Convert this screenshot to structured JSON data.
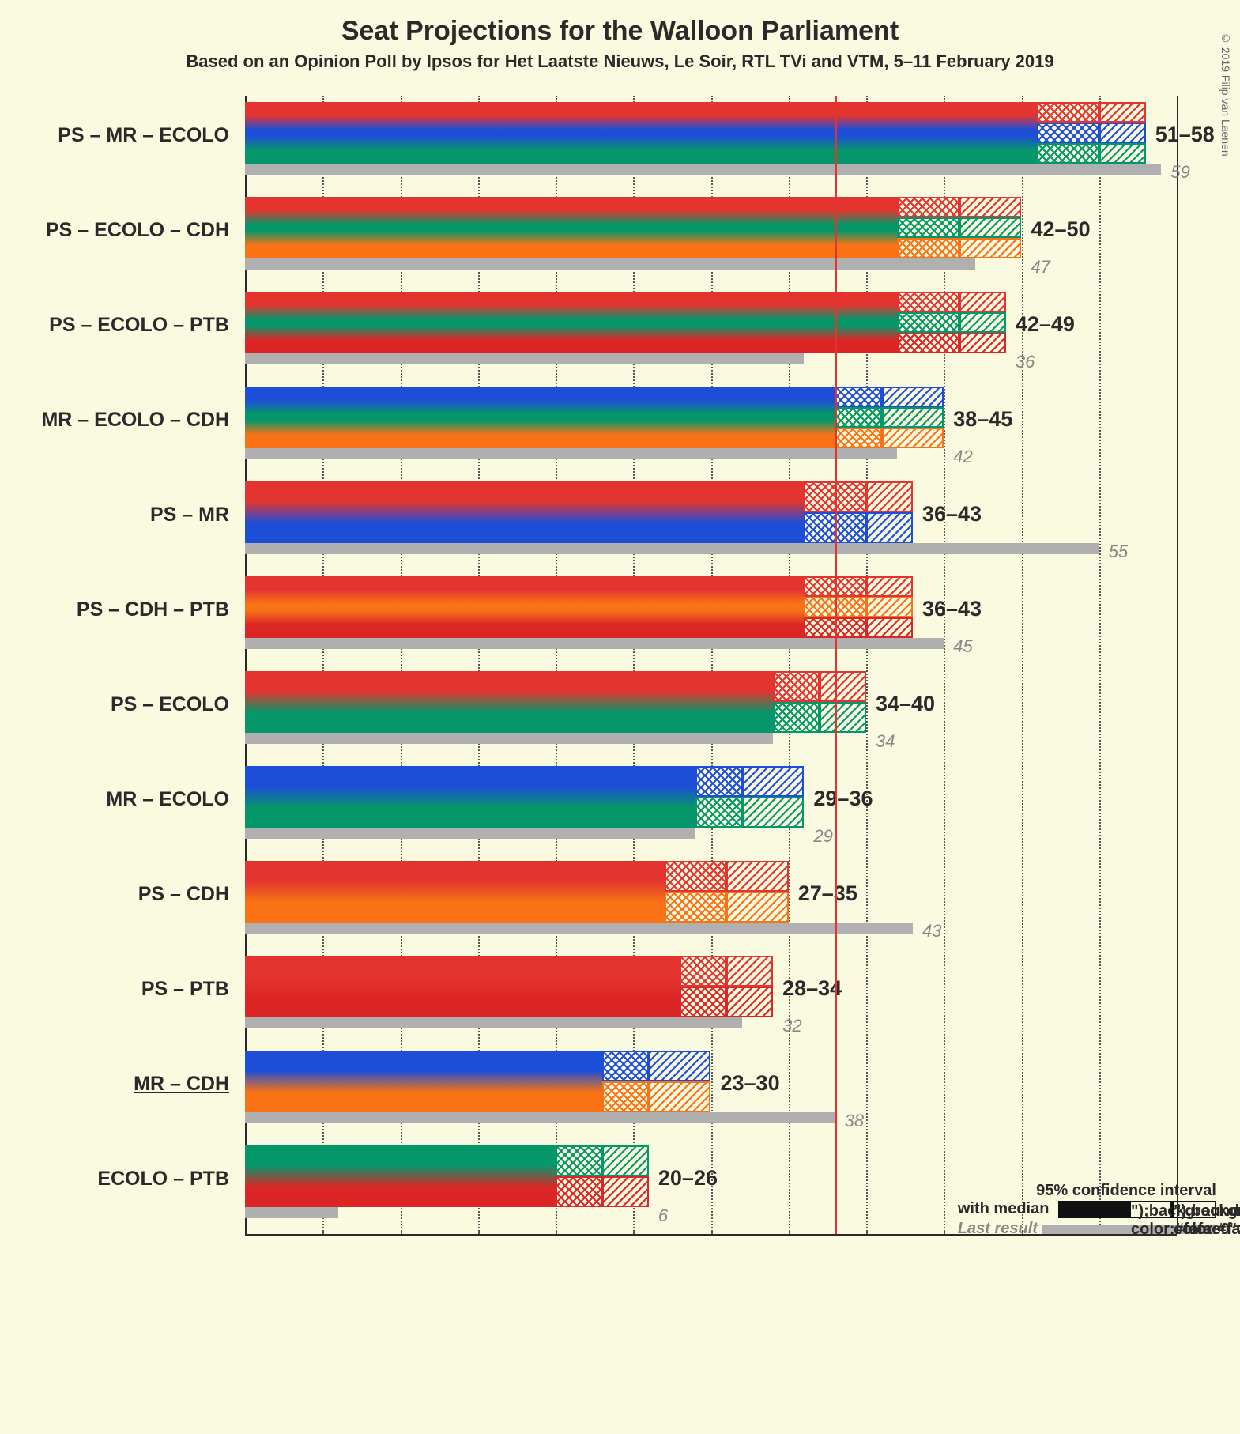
{
  "title": "Seat Projections for the Walloon Parliament",
  "subtitle": "Based on an Opinion Poll by Ipsos for Het Laatste Nieuws, Le Soir, RTL TVi and VTM, 5–11 February 2019",
  "copyright": "© 2019 Filip van Laenen",
  "title_fontsize": 34,
  "subtitle_fontsize": 22,
  "label_fontsize": 25,
  "range_fontsize": 27,
  "last_fontsize": 22,
  "legend_fontsize": 20,
  "background_color": "#fafae0",
  "text_color": "#2a2a2a",
  "last_bar_color": "#b0b0b0",
  "majority_line_color": "#e3342f",
  "grid_dotted_color": "#555555",
  "grid_solid_color": "#2a2a2a",
  "x_max": 60,
  "x_tick_step": 5,
  "x_solid_ticks": [
    0,
    60
  ],
  "majority_at": 38,
  "party_colors": {
    "PS": "#e3342f",
    "MR": "#1d4ed8",
    "ECOLO": "#059669",
    "CDH": "#f97316",
    "PTB": "#dc2626"
  },
  "legend": {
    "ci_label": "95% confidence interval",
    "ci_label2": "with median",
    "last_label": "Last result"
  },
  "rows": [
    {
      "label": "PS – MR – ECOLO",
      "parties": [
        "PS",
        "MR",
        "ECOLO"
      ],
      "low": 51,
      "median": 55,
      "high": 58,
      "last": 59,
      "underline": false
    },
    {
      "label": "PS – ECOLO – CDH",
      "parties": [
        "PS",
        "ECOLO",
        "CDH"
      ],
      "low": 42,
      "median": 46,
      "high": 50,
      "last": 47,
      "underline": false
    },
    {
      "label": "PS – ECOLO – PTB",
      "parties": [
        "PS",
        "ECOLO",
        "PTB"
      ],
      "low": 42,
      "median": 46,
      "high": 49,
      "last": 36,
      "underline": false
    },
    {
      "label": "MR – ECOLO – CDH",
      "parties": [
        "MR",
        "ECOLO",
        "CDH"
      ],
      "low": 38,
      "median": 41,
      "high": 45,
      "last": 42,
      "underline": false
    },
    {
      "label": "PS – MR",
      "parties": [
        "PS",
        "MR"
      ],
      "low": 36,
      "median": 40,
      "high": 43,
      "last": 55,
      "underline": false
    },
    {
      "label": "PS – CDH – PTB",
      "parties": [
        "PS",
        "CDH",
        "PTB"
      ],
      "low": 36,
      "median": 40,
      "high": 43,
      "last": 45,
      "underline": false
    },
    {
      "label": "PS – ECOLO",
      "parties": [
        "PS",
        "ECOLO"
      ],
      "low": 34,
      "median": 37,
      "high": 40,
      "last": 34,
      "underline": false
    },
    {
      "label": "MR – ECOLO",
      "parties": [
        "MR",
        "ECOLO"
      ],
      "low": 29,
      "median": 32,
      "high": 36,
      "last": 29,
      "underline": false
    },
    {
      "label": "PS – CDH",
      "parties": [
        "PS",
        "CDH"
      ],
      "low": 27,
      "median": 31,
      "high": 35,
      "last": 43,
      "underline": false
    },
    {
      "label": "PS – PTB",
      "parties": [
        "PS",
        "PTB"
      ],
      "low": 28,
      "median": 31,
      "high": 34,
      "last": 32,
      "underline": false
    },
    {
      "label": "MR – CDH",
      "parties": [
        "MR",
        "CDH"
      ],
      "low": 23,
      "median": 26,
      "high": 30,
      "last": 38,
      "underline": true
    },
    {
      "label": "ECOLO – PTB",
      "parties": [
        "ECOLO",
        "PTB"
      ],
      "low": 20,
      "median": 23,
      "high": 26,
      "last": 6,
      "underline": false
    }
  ]
}
